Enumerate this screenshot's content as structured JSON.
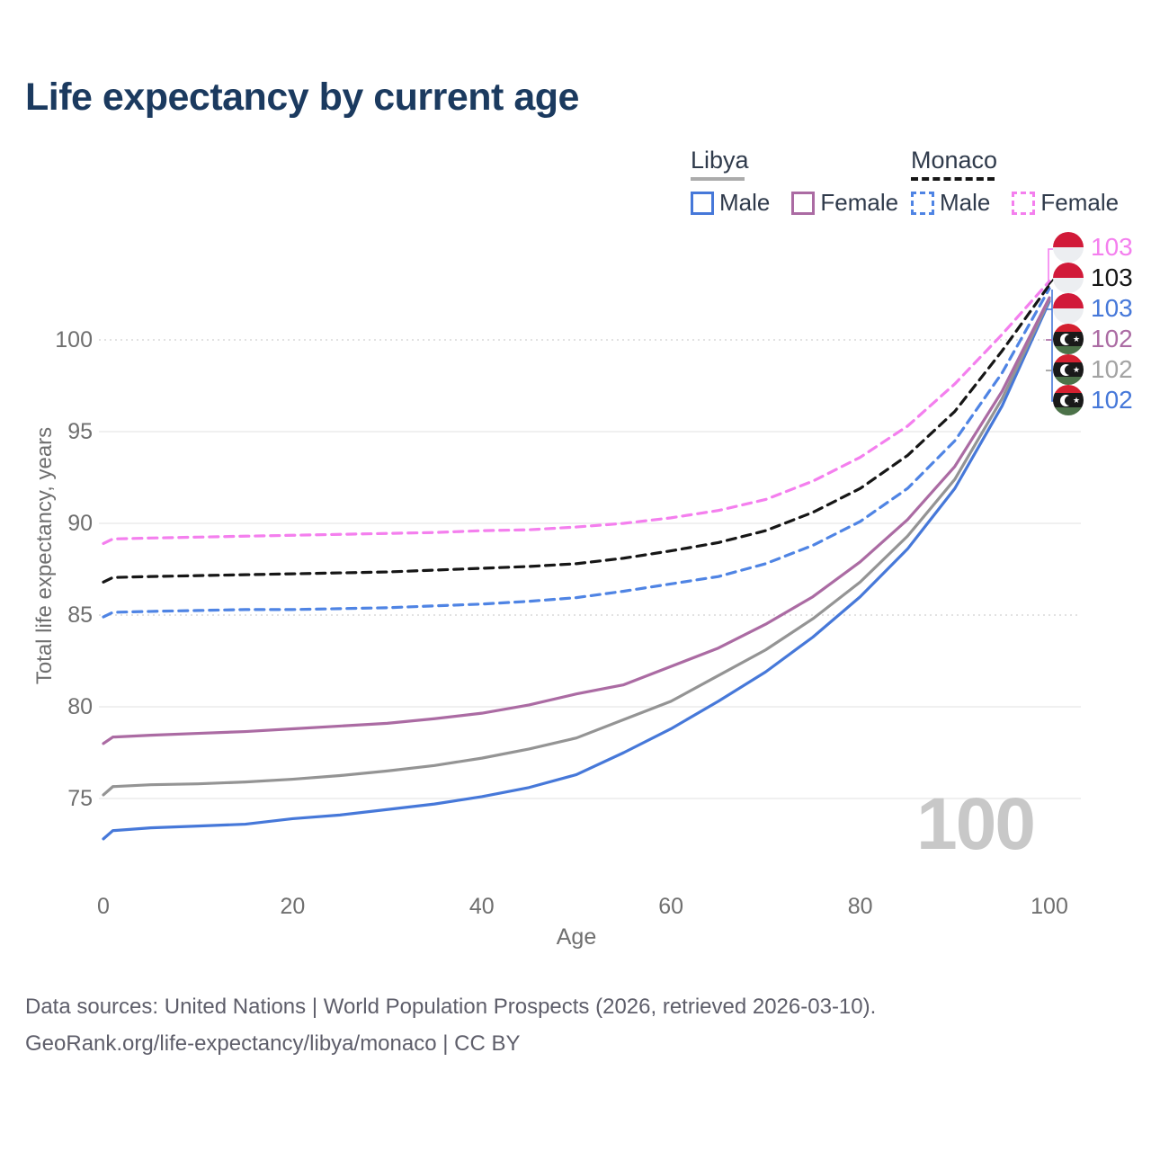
{
  "title": "Life expectancy by current age",
  "legend": {
    "position": "top-right",
    "groups": [
      {
        "country": "Libya",
        "line_style": "solid",
        "underline_color": "#ababab",
        "items": [
          {
            "label": "Male",
            "color": "#4678d9"
          },
          {
            "label": "Female",
            "color": "#ab6ba3"
          }
        ]
      },
      {
        "country": "Monaco",
        "line_style": "dashed",
        "underline_color": "#161616",
        "items": [
          {
            "label": "Male",
            "color": "#4f84e4"
          },
          {
            "label": "Female",
            "color": "#f47fee"
          }
        ]
      }
    ]
  },
  "y_axis": {
    "title": "Total life expectancy, years",
    "ticks": [
      75,
      80,
      85,
      90,
      95,
      100
    ]
  },
  "x_axis": {
    "title": "Age",
    "ticks": [
      0,
      20,
      40,
      60,
      80,
      100
    ]
  },
  "watermark_age_counter": "100",
  "end_labels": [
    {
      "value": "103",
      "flag": "monaco",
      "series": "Monaco Female",
      "color": "#f47fee"
    },
    {
      "value": "103",
      "flag": "monaco",
      "series": "Monaco",
      "color": "#161616"
    },
    {
      "value": "103",
      "flag": "monaco",
      "series": "Monaco Male",
      "color": "#4678d9"
    },
    {
      "value": "102",
      "flag": "libya",
      "series": "Libya Female",
      "color": "#ab6ba3"
    },
    {
      "value": "102",
      "flag": "libya",
      "series": "Libya",
      "color": "#a3a3a3"
    },
    {
      "value": "102",
      "flag": "libya",
      "series": "Libya Male",
      "color": "#4678d9"
    }
  ],
  "source_line1": "Data sources: United Nations | World Population Prospects (2026, retrieved 2026-03-10).",
  "source_line2": "GeoRank.org/life-expectancy/libya/monaco | CC BY",
  "chart_data": {
    "type": "line",
    "title": "Life expectancy by current age",
    "xlabel": "Age",
    "ylabel": "Total life expectancy, years",
    "xlim": [
      0,
      100
    ],
    "ylim_displayed": [
      72,
      104
    ],
    "x_ticks": [
      0,
      20,
      40,
      60,
      80,
      100
    ],
    "y_ticks": [
      75,
      80,
      85,
      90,
      95,
      100
    ],
    "grid": "horizontal",
    "legend_position": "top-right",
    "ages": [
      0,
      1,
      5,
      10,
      15,
      20,
      25,
      30,
      35,
      40,
      45,
      50,
      55,
      60,
      65,
      70,
      75,
      80,
      85,
      90,
      95,
      100
    ],
    "series": [
      {
        "name": "Monaco Female",
        "country": "Monaco",
        "sex": "Female",
        "style": "dashed",
        "color": "#f47fee",
        "end_label": "103",
        "values": [
          88.9,
          89.15,
          89.2,
          89.25,
          89.3,
          89.35,
          89.4,
          89.45,
          89.5,
          89.6,
          89.65,
          89.8,
          90.0,
          90.3,
          90.7,
          91.3,
          92.3,
          93.6,
          95.3,
          97.6,
          100.3,
          103.2
        ]
      },
      {
        "name": "Monaco",
        "country": "Monaco",
        "sex": "Both",
        "style": "dashed",
        "color": "#161616",
        "end_label": "103",
        "values": [
          86.8,
          87.05,
          87.1,
          87.15,
          87.2,
          87.25,
          87.3,
          87.35,
          87.45,
          87.55,
          87.65,
          87.8,
          88.1,
          88.5,
          88.95,
          89.6,
          90.6,
          91.9,
          93.7,
          96.1,
          99.4,
          103.0
        ]
      },
      {
        "name": "Monaco Male",
        "country": "Monaco",
        "sex": "Male",
        "style": "dashed",
        "color": "#4f84e4",
        "end_label": "103",
        "values": [
          84.9,
          85.15,
          85.2,
          85.25,
          85.3,
          85.3,
          85.35,
          85.4,
          85.5,
          85.6,
          85.75,
          85.95,
          86.3,
          86.7,
          87.1,
          87.8,
          88.8,
          90.1,
          91.9,
          94.5,
          98.2,
          102.8
        ]
      },
      {
        "name": "Libya Female",
        "country": "Libya",
        "sex": "Female",
        "style": "solid",
        "color": "#ab6ba3",
        "end_label": "102",
        "values": [
          78.0,
          78.35,
          78.45,
          78.55,
          78.65,
          78.8,
          78.95,
          79.1,
          79.35,
          79.65,
          80.1,
          80.7,
          81.2,
          82.2,
          83.2,
          84.5,
          86.0,
          87.9,
          90.2,
          93.1,
          97.2,
          102.3
        ]
      },
      {
        "name": "Libya",
        "country": "Libya",
        "sex": "Both",
        "style": "solid",
        "color": "#949494",
        "end_label": "102",
        "values": [
          75.2,
          75.65,
          75.75,
          75.8,
          75.9,
          76.05,
          76.25,
          76.5,
          76.8,
          77.2,
          77.7,
          78.3,
          79.3,
          80.3,
          81.7,
          83.1,
          84.8,
          86.8,
          89.3,
          92.4,
          96.8,
          102.2
        ]
      },
      {
        "name": "Libya Male",
        "country": "Libya",
        "sex": "Male",
        "style": "solid",
        "color": "#4678d9",
        "end_label": "102",
        "values": [
          72.8,
          73.25,
          73.4,
          73.5,
          73.6,
          73.9,
          74.1,
          74.4,
          74.7,
          75.1,
          75.6,
          76.3,
          77.5,
          78.8,
          80.3,
          81.9,
          83.8,
          86.0,
          88.6,
          91.9,
          96.4,
          102.1
        ]
      }
    ]
  }
}
